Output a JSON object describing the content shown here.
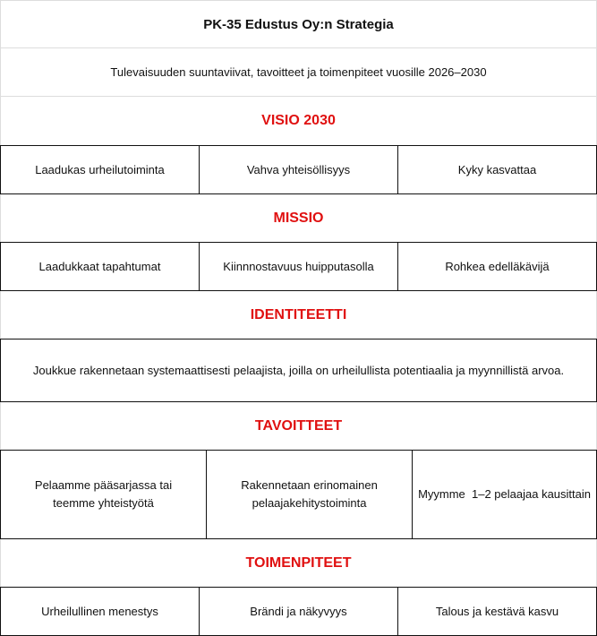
{
  "title": "PK-35 Edustus Oy:n Strategia",
  "subtitle": "Tulevaisuuden suuntaviivat, tavoitteet ja toimenpiteet vuosille 2026–2030",
  "colors": {
    "section_heading": "#e01010",
    "text": "#111111"
  },
  "visio": {
    "heading": "VISIO 2030",
    "items": [
      "Laadukas urheilutoiminta",
      "Vahva yhteisöllisyys",
      "Kyky kasvattaa"
    ]
  },
  "missio": {
    "heading": "MISSIO",
    "items": [
      "Laadukkaat tapahtumat",
      "Kiinnnostavuus huipputasolla",
      "Rohkea edelläkävijä"
    ]
  },
  "identiteetti": {
    "heading": "IDENTITEETTI",
    "text": "Joukkue rakennetaan systemaattisesti pelaajista, joilla on urheilullista potentiaalia ja myynnillistä arvoa."
  },
  "tavoitteet": {
    "heading": "TAVOITTEET",
    "items": [
      "Pelaamme pääsarjassa tai teemme yhteistyötä",
      "Rakennetaan erinomainen pelaajakehitystoiminta",
      "Myymme  1–2 pelaajaa kausittain"
    ]
  },
  "toimenpiteet": {
    "heading": "TOIMENPITEET",
    "items": [
      "Urheilullinen menestys",
      "Brändi ja näkyvyys",
      "Talous ja kestävä kasvu"
    ]
  }
}
